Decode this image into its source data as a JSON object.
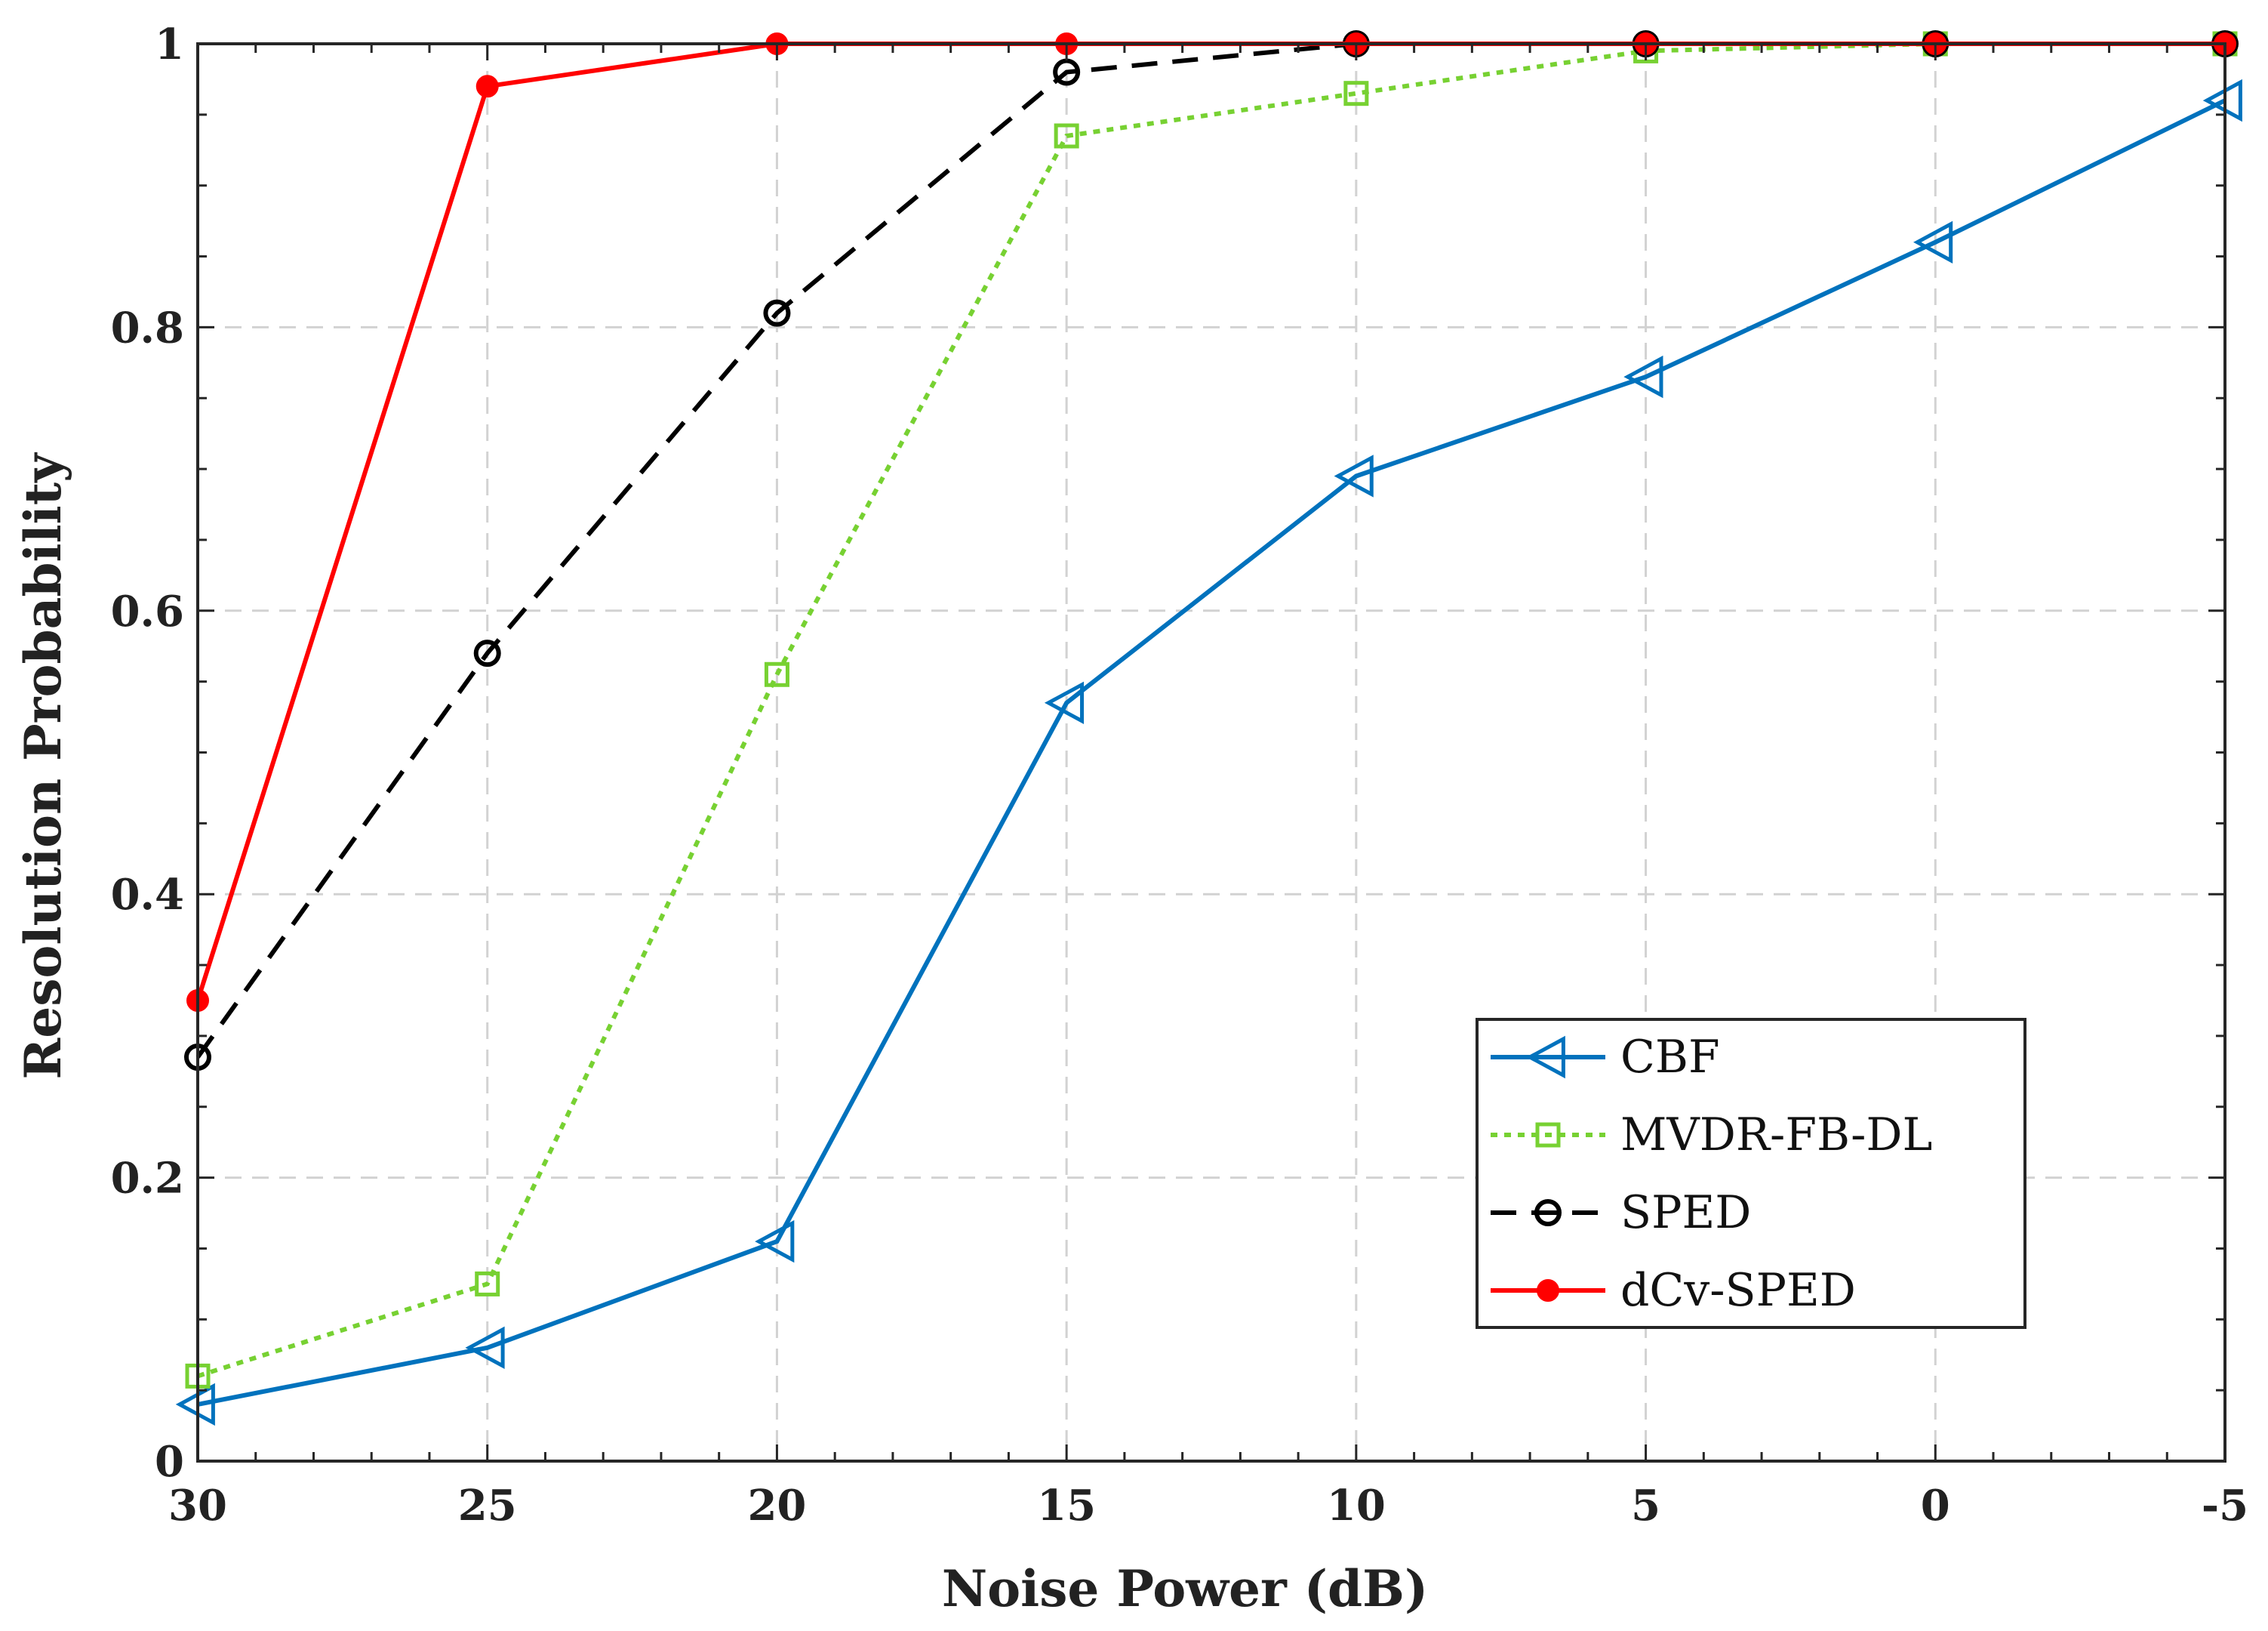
{
  "chart_data": {
    "type": "line",
    "title": "",
    "xlabel": "Noise Power (dB)",
    "ylabel": "Resolution Probability",
    "x": [
      30,
      25,
      20,
      15,
      10,
      5,
      0,
      -5
    ],
    "x_tick_labels": [
      "30",
      "25",
      "20",
      "15",
      "10",
      "5",
      "0",
      "-5"
    ],
    "xlim": [
      30,
      -5
    ],
    "ylim": [
      0,
      1
    ],
    "y_ticks": [
      0,
      0.2,
      0.4,
      0.6,
      0.8,
      1
    ],
    "y_tick_labels": [
      "0",
      "0.2",
      "0.4",
      "0.6",
      "0.8",
      "1"
    ],
    "grid": true,
    "legend_position": "bottom-right",
    "series": [
      {
        "name": "CBF",
        "color": "#0072BD",
        "line_style": "solid",
        "marker": "triangle-left",
        "values": [
          0.04,
          0.08,
          0.155,
          0.535,
          0.695,
          0.765,
          0.86,
          0.96
        ]
      },
      {
        "name": "MVDR-FB-DL",
        "color": "#77D132",
        "line_style": "dotted",
        "marker": "square",
        "values": [
          0.06,
          0.125,
          0.555,
          0.935,
          0.965,
          0.995,
          1.0,
          1.0
        ]
      },
      {
        "name": "SPED",
        "color": "#000000",
        "line_style": "dashed",
        "marker": "circle-open",
        "values": [
          0.285,
          0.57,
          0.81,
          0.98,
          1.0,
          1.0,
          1.0,
          1.0
        ]
      },
      {
        "name": "dCv-SPED",
        "color": "#FF0000",
        "line_style": "solid",
        "marker": "dot",
        "values": [
          0.325,
          0.97,
          1.0,
          1.0,
          1.0,
          1.0,
          1.0,
          1.0
        ]
      }
    ]
  }
}
